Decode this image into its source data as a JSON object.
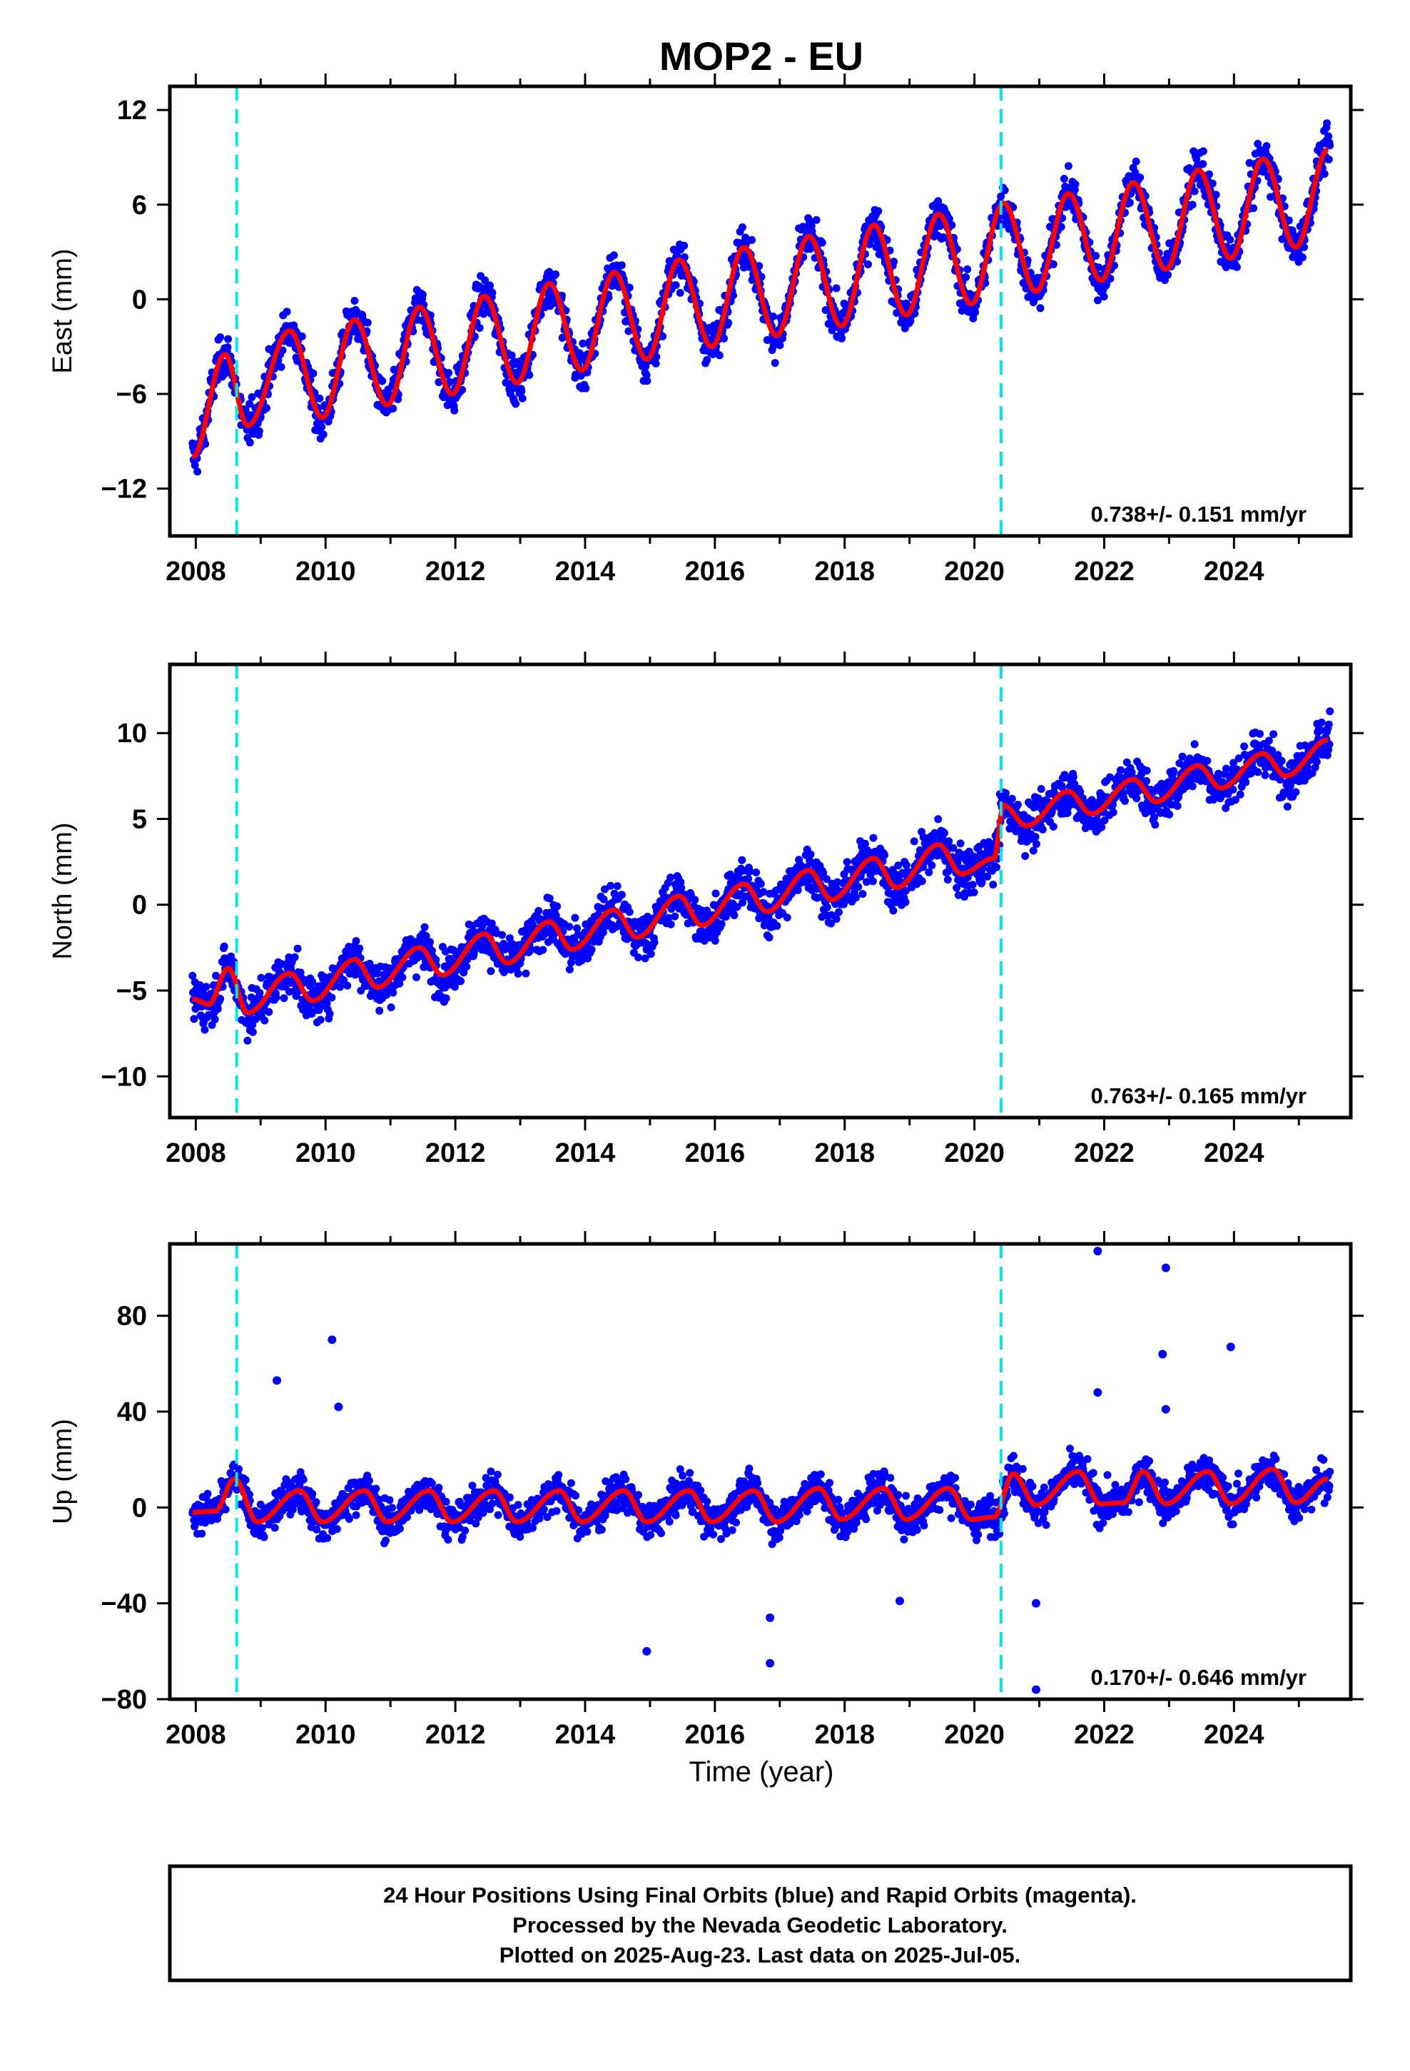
{
  "figure": {
    "title": "MOP2 - EU",
    "xlabel": "Time (year)",
    "footer_lines": [
      "24 Hour Positions Using Final Orbits (blue) and Rapid Orbits (magenta).",
      "Processed by the Nevada Geodetic Laboratory.",
      "Plotted on 2025-Aug-23. Last data on 2025-Jul-05."
    ]
  },
  "colors": {
    "points": "#0000ff",
    "model": "#ff0000",
    "equipment_change": "#00e5ee",
    "frame": "#000000"
  },
  "chart_data": [
    {
      "type": "scatter",
      "ylabel": "East (mm)",
      "rate_label": "0.738+/- 0.151 mm/yr",
      "xlim": [
        2007.6,
        2025.8
      ],
      "ylim": [
        -15,
        13.5
      ],
      "yticks": [
        "12",
        "6",
        "0",
        "-6",
        "-12"
      ],
      "xticks": [
        "2008",
        "2010",
        "2012",
        "2014",
        "2016",
        "2018",
        "2020",
        "2022",
        "2024"
      ],
      "equipment_change_epochs": [
        2008.63,
        2020.41
      ],
      "series": [
        {
          "style": "blue points",
          "description_values": {
            "start": -10,
            "end": 9.5
          }
        },
        {
          "style": "red line",
          "model_points": [
            [
              2007.95,
              -10
            ],
            [
              2008.45,
              -3.5
            ],
            [
              2008.8,
              -8
            ],
            [
              2009.45,
              -2
            ],
            [
              2009.95,
              -7.5
            ],
            [
              2010.45,
              -1.3
            ],
            [
              2010.95,
              -6.7
            ],
            [
              2011.45,
              -0.5
            ],
            [
              2011.95,
              -6
            ],
            [
              2012.45,
              0.2
            ],
            [
              2012.95,
              -5.3
            ],
            [
              2013.45,
              1
            ],
            [
              2013.95,
              -4.5
            ],
            [
              2014.45,
              1.7
            ],
            [
              2014.95,
              -3.8
            ],
            [
              2015.45,
              2.5
            ],
            [
              2015.95,
              -3
            ],
            [
              2016.45,
              3.3
            ],
            [
              2016.95,
              -2.3
            ],
            [
              2017.45,
              4
            ],
            [
              2017.95,
              -1.7
            ],
            [
              2018.45,
              4.7
            ],
            [
              2018.95,
              -1
            ],
            [
              2019.45,
              5.4
            ],
            [
              2019.95,
              -0.3
            ],
            [
              2020.45,
              6.1
            ],
            [
              2020.95,
              0.5
            ],
            [
              2021.45,
              6.7
            ],
            [
              2021.95,
              1.2
            ],
            [
              2022.45,
              7.4
            ],
            [
              2022.95,
              1.9
            ],
            [
              2023.45,
              8.2
            ],
            [
              2023.95,
              2.6
            ],
            [
              2024.45,
              8.9
            ],
            [
              2024.95,
              3.3
            ],
            [
              2025.45,
              9.5
            ]
          ]
        }
      ]
    },
    {
      "type": "scatter",
      "ylabel": "North (mm)",
      "rate_label": "0.763+/- 0.165 mm/yr",
      "xlim": [
        2007.6,
        2025.8
      ],
      "ylim": [
        -12.4,
        14
      ],
      "yticks": [
        "10",
        "5",
        "0",
        "-5",
        "-10"
      ],
      "xticks": [
        "2008",
        "2010",
        "2012",
        "2014",
        "2016",
        "2018",
        "2020",
        "2022",
        "2024"
      ],
      "equipment_change_epochs": [
        2008.63,
        2020.41
      ],
      "series": [
        {
          "style": "blue points",
          "description_values": {
            "start": -5.5,
            "end": 9.5
          }
        },
        {
          "style": "red line",
          "model_points": [
            [
              2007.95,
              -5.5
            ],
            [
              2008.2,
              -5.8
            ],
            [
              2008.5,
              -3.7
            ],
            [
              2008.8,
              -6.3
            ],
            [
              2009.45,
              -4
            ],
            [
              2009.8,
              -5.6
            ],
            [
              2010.45,
              -3.2
            ],
            [
              2010.8,
              -4.8
            ],
            [
              2011.45,
              -2.5
            ],
            [
              2011.8,
              -4.1
            ],
            [
              2012.45,
              -1.7
            ],
            [
              2012.8,
              -3.4
            ],
            [
              2013.45,
              -1
            ],
            [
              2013.8,
              -2.6
            ],
            [
              2014.45,
              -0.3
            ],
            [
              2014.8,
              -1.9
            ],
            [
              2015.45,
              0.5
            ],
            [
              2015.8,
              -1.2
            ],
            [
              2016.45,
              1.2
            ],
            [
              2016.8,
              -0.4
            ],
            [
              2017.45,
              2
            ],
            [
              2017.8,
              0.3
            ],
            [
              2018.45,
              2.7
            ],
            [
              2018.8,
              1
            ],
            [
              2019.45,
              3.5
            ],
            [
              2019.8,
              1.8
            ],
            [
              2020.3,
              2.7
            ],
            [
              2020.45,
              5.8
            ],
            [
              2020.8,
              4.6
            ],
            [
              2021.45,
              6.6
            ],
            [
              2021.8,
              5.3
            ],
            [
              2022.45,
              7.3
            ],
            [
              2022.8,
              6
            ],
            [
              2023.45,
              8.1
            ],
            [
              2023.8,
              6.8
            ],
            [
              2024.45,
              8.8
            ],
            [
              2024.8,
              7.5
            ],
            [
              2025.45,
              9.6
            ]
          ]
        }
      ]
    },
    {
      "type": "scatter",
      "ylabel": "Up (mm)",
      "rate_label": "0.170+/- 0.646 mm/yr",
      "xlim": [
        2007.6,
        2025.8
      ],
      "ylim": [
        -80,
        110
      ],
      "yticks": [
        "80",
        "40",
        "0",
        "-40",
        "-80"
      ],
      "xticks": [
        "2008",
        "2010",
        "2012",
        "2014",
        "2016",
        "2018",
        "2020",
        "2022",
        "2024"
      ],
      "equipment_change_epochs": [
        2008.63,
        2020.41
      ],
      "series": [
        {
          "style": "blue points",
          "description_values": {
            "start": -2,
            "end": 12
          }
        },
        {
          "style": "red line",
          "model_points": [
            [
              2007.95,
              -2
            ],
            [
              2008.3,
              -1.5
            ],
            [
              2008.6,
              12
            ],
            [
              2008.95,
              -6
            ],
            [
              2009.6,
              7
            ],
            [
              2009.95,
              -6
            ],
            [
              2010.6,
              7
            ],
            [
              2010.95,
              -6
            ],
            [
              2011.6,
              7
            ],
            [
              2011.95,
              -6
            ],
            [
              2012.6,
              7
            ],
            [
              2012.95,
              -6
            ],
            [
              2013.6,
              7
            ],
            [
              2013.95,
              -6
            ],
            [
              2014.6,
              7
            ],
            [
              2014.95,
              -6
            ],
            [
              2015.6,
              7
            ],
            [
              2015.95,
              -6
            ],
            [
              2016.6,
              7
            ],
            [
              2016.95,
              -6
            ],
            [
              2017.6,
              8
            ],
            [
              2017.95,
              -5
            ],
            [
              2018.6,
              8
            ],
            [
              2018.95,
              -5
            ],
            [
              2019.6,
              8
            ],
            [
              2019.95,
              -5
            ],
            [
              2020.3,
              -4
            ],
            [
              2020.6,
              14
            ],
            [
              2020.95,
              1
            ],
            [
              2021.6,
              15
            ],
            [
              2021.95,
              1.5
            ],
            [
              2022.3,
              2
            ],
            [
              2022.6,
              15
            ],
            [
              2022.95,
              1.5
            ],
            [
              2023.6,
              15
            ],
            [
              2023.95,
              1.5
            ],
            [
              2024.6,
              16
            ],
            [
              2024.95,
              2
            ],
            [
              2025.45,
              12
            ]
          ]
        }
      ],
      "outliers": [
        [
          2010.1,
          70
        ],
        [
          2009.25,
          53
        ],
        [
          2010.2,
          42
        ],
        [
          2014.95,
          -60
        ],
        [
          2016.85,
          -46
        ],
        [
          2016.85,
          -65
        ],
        [
          2018.85,
          -39
        ],
        [
          2020.95,
          -40
        ],
        [
          2020.95,
          -76
        ],
        [
          2021.9,
          107
        ],
        [
          2022.95,
          100
        ],
        [
          2022.9,
          64
        ],
        [
          2023.95,
          67
        ],
        [
          2022.95,
          41
        ],
        [
          2021.9,
          48
        ]
      ]
    }
  ]
}
